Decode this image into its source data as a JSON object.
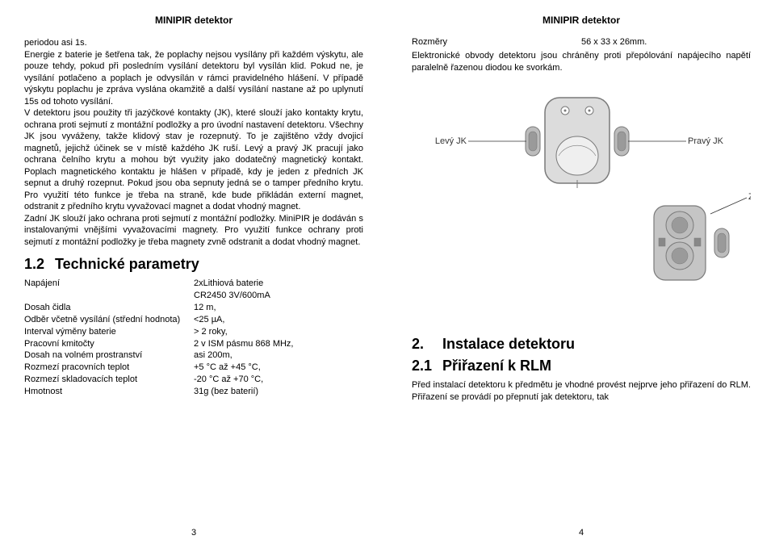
{
  "header": {
    "title": "MINIPIR detektor"
  },
  "left": {
    "body": "periodou asi 1s.\nEnergie z baterie je šetřena tak, že poplachy nejsou vysílány při každém výskytu, ale pouze tehdy, pokud při posledním vysílání detektoru byl vysílán klid. Pokud ne, je vysílání potlačeno a poplach je odvysílán v rámci pravidelného hlášení. V případě výskytu poplachu je zpráva vyslána okamžitě a další vysílání nastane až po uplynutí 15s od tohoto vysílání.\nV detektoru jsou použity tři jazýčkové kontakty (JK), které slouží jako kontakty krytu, ochrana proti sejmutí z montážní podložky a pro úvodní nastavení detektoru. Všechny JK jsou vyváženy, takže klidový stav je rozepnutý. To je zajištěno vždy dvojicí magnetů, jejichž účinek se v místě každého JK ruší. Levý a pravý JK pracují jako ochrana čelního krytu a mohou být využity jako dodatečný magnetický kontakt. Poplach magnetického kontaktu je hlášen v případě, kdy je jeden z předních JK sepnut a druhý rozepnut. Pokud jsou oba sepnuty jedná se o tamper předního krytu. Pro využití této funkce je třeba na straně, kde bude přikládán externí magnet, odstranit z předního krytu vyvažovací magnet a dodat vhodný magnet.\nZadní JK slouží jako ochrana proti sejmutí z montážní podložky. MiniPIR je dodáván s instalovanými vnějšími vyvažovacími magnety. Pro využití funkce ochrany proti sejmutí z montážní podložky je třeba magnety zvně odstranit a dodat vhodný magnet.",
    "spec_heading_num": "1.2",
    "spec_heading": "Technické parametry",
    "specs": [
      {
        "label": "Napájení",
        "value": "2xLithiová baterie"
      },
      {
        "label": "",
        "value": "CR2450 3V/600mA"
      },
      {
        "label": "Dosah čidla",
        "value": "12 m,"
      },
      {
        "label": "Odběr včetně vysílání (střední hodnota)",
        "value": "<25 µA,"
      },
      {
        "label": "Interval výměny baterie",
        "value": "> 2 roky,"
      },
      {
        "label": "Pracovní kmitočty",
        "value": "2 v ISM pásmu 868 MHz,"
      },
      {
        "label": "Dosah na volném prostranství",
        "value": "asi 200m,"
      },
      {
        "label": "Rozmezí pracovních teplot",
        "value": "+5 °C až +45 °C,"
      },
      {
        "label": "Rozmezí skladovacích teplot",
        "value": "-20 °C až +70 °C,"
      },
      {
        "label": "Hmotnost",
        "value": "31g (bez baterií)"
      }
    ],
    "page_num": "3"
  },
  "right": {
    "dim_label": "Rozměry",
    "dim_value": "56 x 33 x 26mm.",
    "note": "Elektronické obvody detektoru jsou chráněny proti přepólování napájecího napětí paralelně řazenou diodou ke svorkám.",
    "diagram": {
      "labels": {
        "left": "Levý JK",
        "right": "Pravý JK",
        "rear": "Zadní JK"
      },
      "colors": {
        "outline": "#7a7a7a",
        "fill_light": "#dcdcdc",
        "fill_mid": "#bcbcbc",
        "fill_dark": "#9a9a9a",
        "pcb": "#c5c5c5",
        "magnet": "#888888",
        "lens": "#efefef",
        "text": "#333333"
      }
    },
    "sec2_num": "2.",
    "sec2_title": "Instalace detektoru",
    "sec21_num": "2.1",
    "sec21_title": "Přiřazení k RLM",
    "body2": "Před instalací detektoru k předmětu je vhodné provést nejprve jeho přiřazení do RLM. Přiřazení se provádí po přepnutí jak detektoru, tak",
    "page_num": "4"
  }
}
